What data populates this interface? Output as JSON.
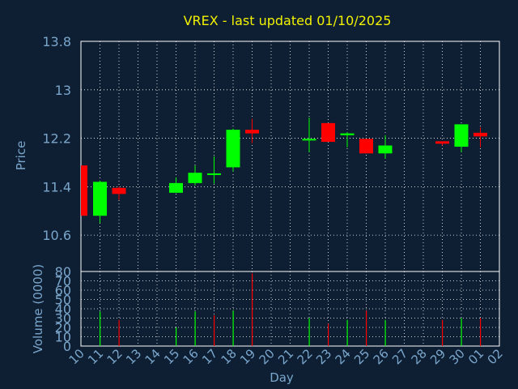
{
  "colors": {
    "background": "#0e1f33",
    "frame": "#ffffff",
    "grid": "#ffffff",
    "title": "#f2f200",
    "text": "#7aa6cc",
    "up": "#00ff00",
    "down": "#ff0000"
  },
  "chart_data": [
    {
      "type": "candlestick",
      "title": "VREX - last updated 01/10/2025",
      "ylabel": "Price",
      "ylim": [
        10.0,
        13.8
      ],
      "yticks": [
        "13.8",
        "13",
        "12.2",
        "11.4",
        "10.6"
      ],
      "grid": true,
      "x": [
        "10",
        "11",
        "12",
        "13",
        "14",
        "15",
        "16",
        "17",
        "18",
        "19",
        "20",
        "21",
        "22",
        "23",
        "24",
        "25",
        "26",
        "27",
        "28",
        "29",
        "30",
        "01",
        "02"
      ],
      "candles": [
        {
          "day": "10",
          "open": 11.75,
          "high": 11.75,
          "low": 10.92,
          "close": 10.92
        },
        {
          "day": "11",
          "open": 10.92,
          "high": 11.5,
          "low": 10.8,
          "close": 11.48
        },
        {
          "day": "12",
          "open": 11.38,
          "high": 11.4,
          "low": 11.18,
          "close": 11.28
        },
        {
          "day": "15",
          "open": 11.3,
          "high": 11.55,
          "low": 11.3,
          "close": 11.46
        },
        {
          "day": "16",
          "open": 11.46,
          "high": 11.75,
          "low": 11.42,
          "close": 11.63
        },
        {
          "day": "17",
          "open": 11.62,
          "high": 11.9,
          "low": 11.45,
          "close": 11.62
        },
        {
          "day": "18",
          "open": 11.72,
          "high": 12.36,
          "low": 11.65,
          "close": 12.34
        },
        {
          "day": "19",
          "open": 12.34,
          "high": 12.52,
          "low": 12.12,
          "close": 12.28
        },
        {
          "day": "22",
          "open": 12.19,
          "high": 12.54,
          "low": 11.97,
          "close": 12.19
        },
        {
          "day": "23",
          "open": 12.45,
          "high": 12.45,
          "low": 12.14,
          "close": 12.14
        },
        {
          "day": "24",
          "open": 12.25,
          "high": 12.3,
          "low": 12.05,
          "close": 12.28
        },
        {
          "day": "25",
          "open": 12.19,
          "high": 12.19,
          "low": 11.95,
          "close": 11.95
        },
        {
          "day": "26",
          "open": 11.95,
          "high": 12.25,
          "low": 11.86,
          "close": 12.08
        },
        {
          "day": "29",
          "open": 12.15,
          "high": 12.15,
          "low": 12.08,
          "close": 12.11
        },
        {
          "day": "30",
          "open": 12.06,
          "high": 12.43,
          "low": 11.97,
          "close": 12.43
        },
        {
          "day": "01",
          "open": 12.29,
          "high": 12.38,
          "low": 12.05,
          "close": 12.23
        }
      ]
    },
    {
      "type": "bar",
      "xlabel": "Day",
      "ylabel": "Volume (0000)",
      "ylim": [
        0,
        80
      ],
      "yticks": [
        "80",
        "70",
        "60",
        "50",
        "40",
        "30",
        "20",
        "10",
        "0"
      ],
      "grid": true,
      "x": [
        "10",
        "11",
        "12",
        "13",
        "14",
        "15",
        "16",
        "17",
        "18",
        "19",
        "20",
        "21",
        "22",
        "23",
        "24",
        "25",
        "26",
        "27",
        "28",
        "29",
        "30",
        "01",
        "02"
      ],
      "bars": [
        {
          "day": "10",
          "value": 0,
          "color": "#ff0000"
        },
        {
          "day": "11",
          "value": 37,
          "color": "#00ff00"
        },
        {
          "day": "12",
          "value": 28,
          "color": "#ff0000"
        },
        {
          "day": "15",
          "value": 20,
          "color": "#00ff00"
        },
        {
          "day": "16",
          "value": 37,
          "color": "#00ff00"
        },
        {
          "day": "17",
          "value": 33,
          "color": "#ff0000"
        },
        {
          "day": "18",
          "value": 38,
          "color": "#00ff00"
        },
        {
          "day": "19",
          "value": 78,
          "color": "#ff0000"
        },
        {
          "day": "22",
          "value": 30,
          "color": "#00ff00"
        },
        {
          "day": "23",
          "value": 24,
          "color": "#ff0000"
        },
        {
          "day": "24",
          "value": 28,
          "color": "#00ff00"
        },
        {
          "day": "25",
          "value": 38,
          "color": "#ff0000"
        },
        {
          "day": "26",
          "value": 28,
          "color": "#00ff00"
        },
        {
          "day": "29",
          "value": 28,
          "color": "#ff0000"
        },
        {
          "day": "30",
          "value": 30,
          "color": "#00ff00"
        },
        {
          "day": "01",
          "value": 30,
          "color": "#ff0000"
        }
      ]
    }
  ]
}
